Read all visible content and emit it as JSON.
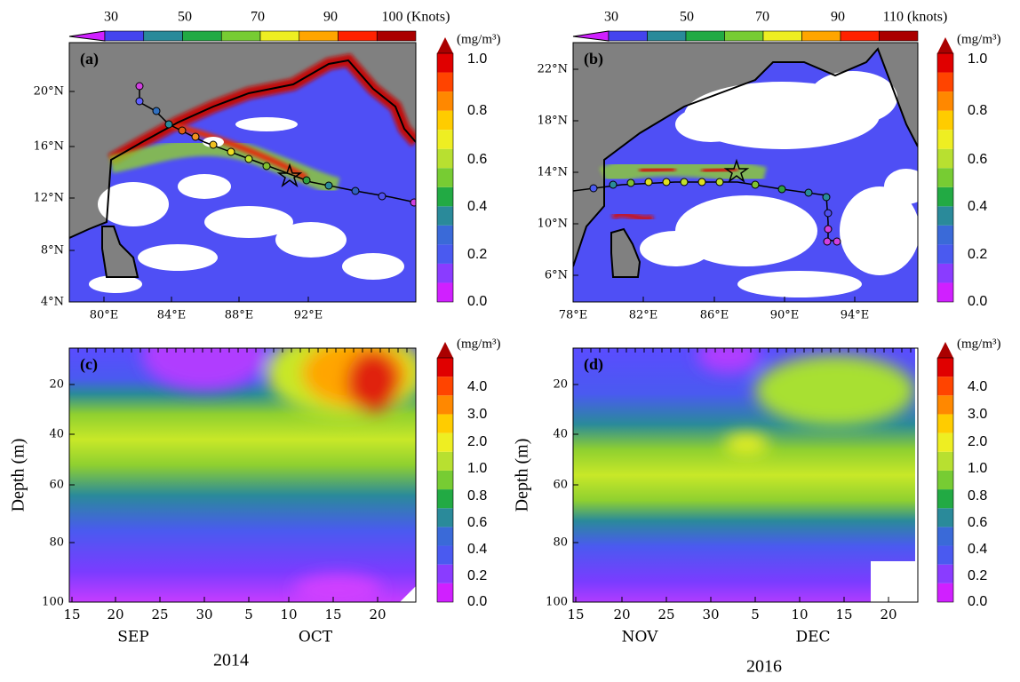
{
  "panels": [
    {
      "label": "(a)",
      "top_colorbar": {
        "labels": [
          "30",
          "50",
          "70",
          "90",
          "100 (Knots)"
        ]
      },
      "colorbar": {
        "unit": "(mg/m³)",
        "labels": [
          "1.0",
          "0.8",
          "0.6",
          "0.4",
          "0.2",
          "0.0"
        ]
      },
      "yticks": [
        "20°N",
        "16°N",
        "12°N",
        "8°N",
        "4°N"
      ],
      "xticks": [
        "80°E",
        "84°E",
        "88°E",
        "92°E"
      ]
    },
    {
      "label": "(b)",
      "top_colorbar": {
        "labels": [
          "30",
          "50",
          "70",
          "90",
          "110 (knots)"
        ]
      },
      "colorbar": {
        "unit": "(mg/m³)",
        "labels": [
          "1.0",
          "0.8",
          "0.6",
          "0.4",
          "0.2",
          "0.0"
        ]
      },
      "yticks": [
        "22°N",
        "18°N",
        "14°N",
        "10°N",
        "6°N"
      ],
      "xticks": [
        "78°E",
        "82°E",
        "86°E",
        "90°E",
        "94°E"
      ]
    },
    {
      "label": "(c)",
      "colorbar": {
        "unit": "(mg/m³)",
        "labels": [
          "4.0",
          "3.0",
          "2.0",
          "1.0",
          "0.8",
          "0.6",
          "0.4",
          "0.2",
          "0.0"
        ]
      },
      "ylabel": "Depth (m)",
      "yticks": [
        "20",
        "40",
        "60",
        "80",
        "100"
      ],
      "xticks": [
        "15",
        "20",
        "25",
        "30",
        "5",
        "10",
        "15",
        "20"
      ],
      "months": [
        "SEP",
        "OCT"
      ],
      "year": "2014"
    },
    {
      "label": "(d)",
      "colorbar": {
        "unit": "(mg/m³)",
        "labels": [
          "4.0",
          "3.0",
          "2.0",
          "1.0",
          "0.8",
          "0.6",
          "0.4",
          "0.2",
          "0.0"
        ]
      },
      "ylabel": "Depth (m)",
      "yticks": [
        "20",
        "40",
        "60",
        "80",
        "100"
      ],
      "xticks": [
        "15",
        "20",
        "25",
        "30",
        "5",
        "10",
        "15",
        "20"
      ],
      "months": [
        "NOV",
        "DEC"
      ],
      "year": "2016"
    }
  ]
}
